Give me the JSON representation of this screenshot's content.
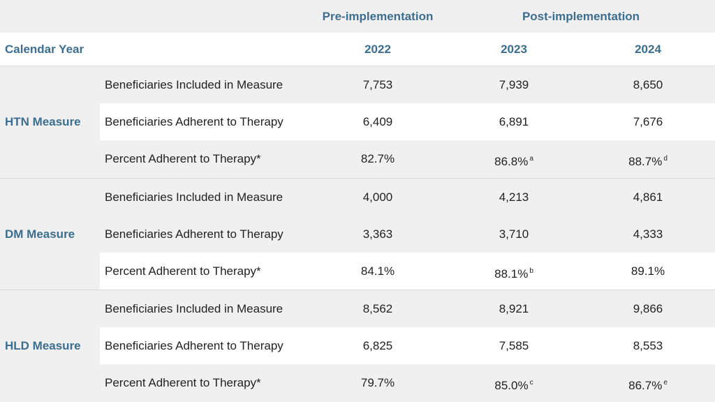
{
  "header": {
    "pre_label": "Pre-implementation",
    "post_label": "Post-implementation",
    "calendar_year_label": "Calendar Year",
    "years": [
      "2022",
      "2023",
      "2024"
    ]
  },
  "measures": [
    {
      "label": "HTN Measure",
      "rows": [
        {
          "desc": "Beneficiaries Included in Measure",
          "v": [
            "7,753",
            "7,939",
            "8,650"
          ],
          "sup": [
            "",
            "",
            ""
          ]
        },
        {
          "desc": "Beneficiaries Adherent to Therapy",
          "v": [
            "6,409",
            "6,891",
            "7,676"
          ],
          "sup": [
            "",
            "",
            ""
          ]
        },
        {
          "desc": "Percent Adherent to Therapy*",
          "v": [
            "82.7%",
            "86.8%",
            "88.7%"
          ],
          "sup": [
            "",
            "a",
            "d"
          ]
        }
      ]
    },
    {
      "label": "DM Measure",
      "rows": [
        {
          "desc": "Beneficiaries Included in Measure",
          "v": [
            "4,000",
            "4,213",
            "4,861"
          ],
          "sup": [
            "",
            "",
            ""
          ]
        },
        {
          "desc": "Beneficiaries Adherent to Therapy",
          "v": [
            "3,363",
            "3,710",
            "4,333"
          ],
          "sup": [
            "",
            "",
            ""
          ]
        },
        {
          "desc": "Percent Adherent to Therapy*",
          "v": [
            "84.1%",
            "88.1%",
            "89.1%"
          ],
          "sup": [
            "",
            "b",
            ""
          ]
        }
      ]
    },
    {
      "label": "HLD Measure",
      "rows": [
        {
          "desc": "Beneficiaries Included in Measure",
          "v": [
            "8,562",
            "8,921",
            "9,866"
          ],
          "sup": [
            "",
            "",
            ""
          ]
        },
        {
          "desc": "Beneficiaries Adherent to Therapy",
          "v": [
            "6,825",
            "7,585",
            "8,553"
          ],
          "sup": [
            "",
            "",
            ""
          ]
        },
        {
          "desc": "Percent Adherent to Therapy*",
          "v": [
            "79.7%",
            "85.0%",
            "86.7%"
          ],
          "sup": [
            "",
            "c",
            "e"
          ]
        }
      ]
    }
  ],
  "colors": {
    "header_text": "#3d6e8f",
    "band_gray": "#f0f0f0",
    "band_white": "#ffffff"
  }
}
